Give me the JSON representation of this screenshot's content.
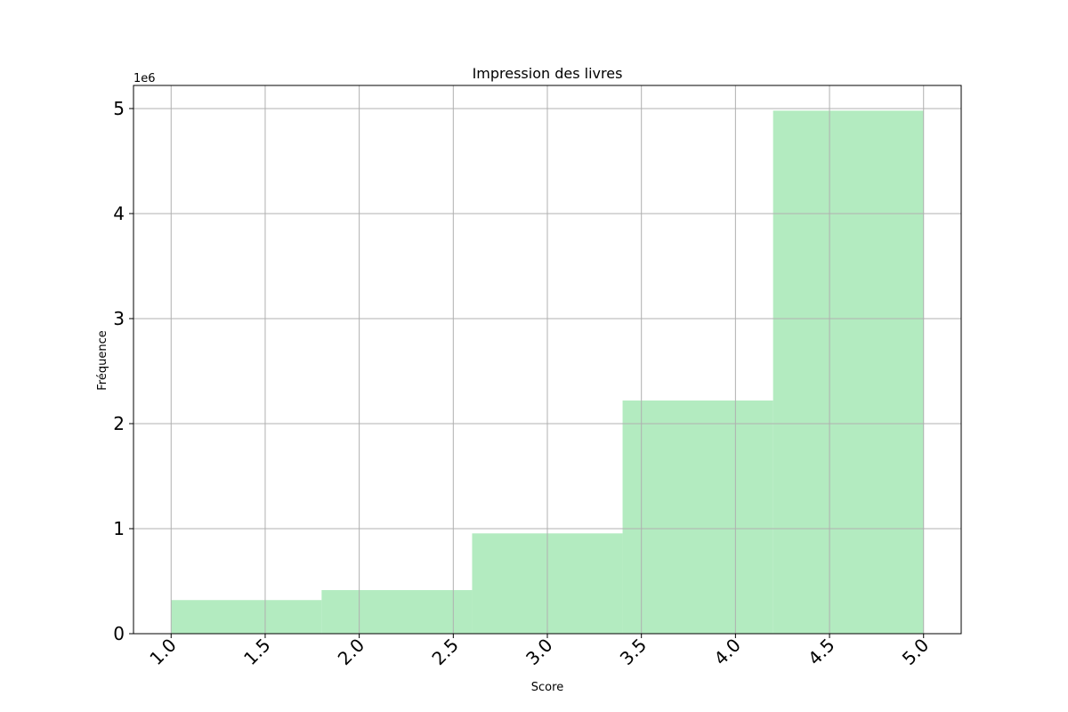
{
  "chart_data": {
    "type": "bar",
    "title": "Impression des livres",
    "xlabel": "Score",
    "ylabel": "Fréquence",
    "y_offset_label": "1e6",
    "bins": [
      {
        "start": 1.0,
        "end": 1.8,
        "value": 320000
      },
      {
        "start": 1.8,
        "end": 2.6,
        "value": 415000
      },
      {
        "start": 2.6,
        "end": 3.4,
        "value": 955000
      },
      {
        "start": 3.4,
        "end": 4.2,
        "value": 2220000
      },
      {
        "start": 4.2,
        "end": 5.0,
        "value": 4980000
      }
    ],
    "xlim": [
      0.8,
      5.2
    ],
    "ylim": [
      0,
      5220000
    ],
    "x_ticks": [
      "1.0",
      "1.5",
      "2.0",
      "2.5",
      "3.0",
      "3.5",
      "4.0",
      "4.5",
      "5.0"
    ],
    "y_ticks": [
      "0",
      "1",
      "2",
      "3",
      "4",
      "5"
    ],
    "grid": true,
    "bar_color": "#b3ebc0"
  }
}
